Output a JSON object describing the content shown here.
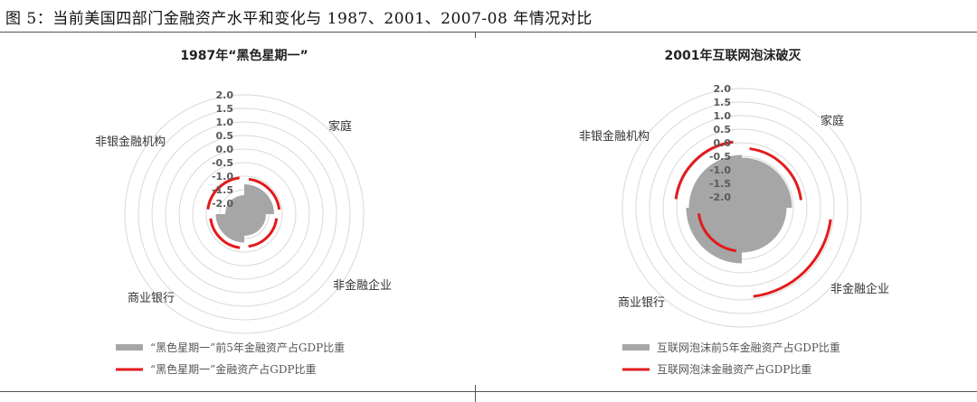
{
  "figure_title": "图 5：当前美国四部门金融资产水平和变化与 1987、2001、2007-08 年情况对比",
  "chart_data": [
    {
      "type": "radar",
      "title": "1987年“黑色星期一”",
      "categories": [
        "家庭",
        "非金融企业",
        "商业银行",
        "非银金融机构"
      ],
      "radial_ticks": [
        "2.0",
        "1.5",
        "1.0",
        "0.5",
        "0.0",
        "-0.5",
        "-1.0",
        "-1.5",
        "-2.0"
      ],
      "rlim": [
        -2.0,
        2.0
      ],
      "series": [
        {
          "name": "“黑色星期一”前5年金融资产占GDP比重",
          "style": "area",
          "color": "#a6a6a6",
          "values": [
            -1.3,
            -1.6,
            -1.35,
            -1.7
          ]
        },
        {
          "name": "“黑色星期一”金融资产占GDP比重",
          "style": "line",
          "color": "#e31a1c",
          "values": [
            -1.1,
            -1.2,
            -1.15,
            -1.05
          ]
        }
      ]
    },
    {
      "type": "radar",
      "title": "2001年互联网泡沫破灭",
      "categories": [
        "家庭",
        "非金融企业",
        "商业银行",
        "非银金融机构"
      ],
      "radial_ticks": [
        "2.0",
        "1.5",
        "1.0",
        "0.5",
        "0.0",
        "-0.5",
        "-1.0",
        "-1.5",
        "-2.0"
      ],
      "rlim": [
        -2.0,
        2.0
      ],
      "series": [
        {
          "name": "互联网泡沫前5年金融资产占GDP比重",
          "style": "area",
          "color": "#a6a6a6",
          "values": [
            -0.55,
            -0.75,
            -0.35,
            -0.45
          ]
        },
        {
          "name": "互联网泡沫金融资产占GDP比重",
          "style": "line",
          "color": "#e31a1c",
          "values": [
            -0.2,
            0.9,
            -0.8,
            0.05
          ]
        }
      ]
    }
  ]
}
